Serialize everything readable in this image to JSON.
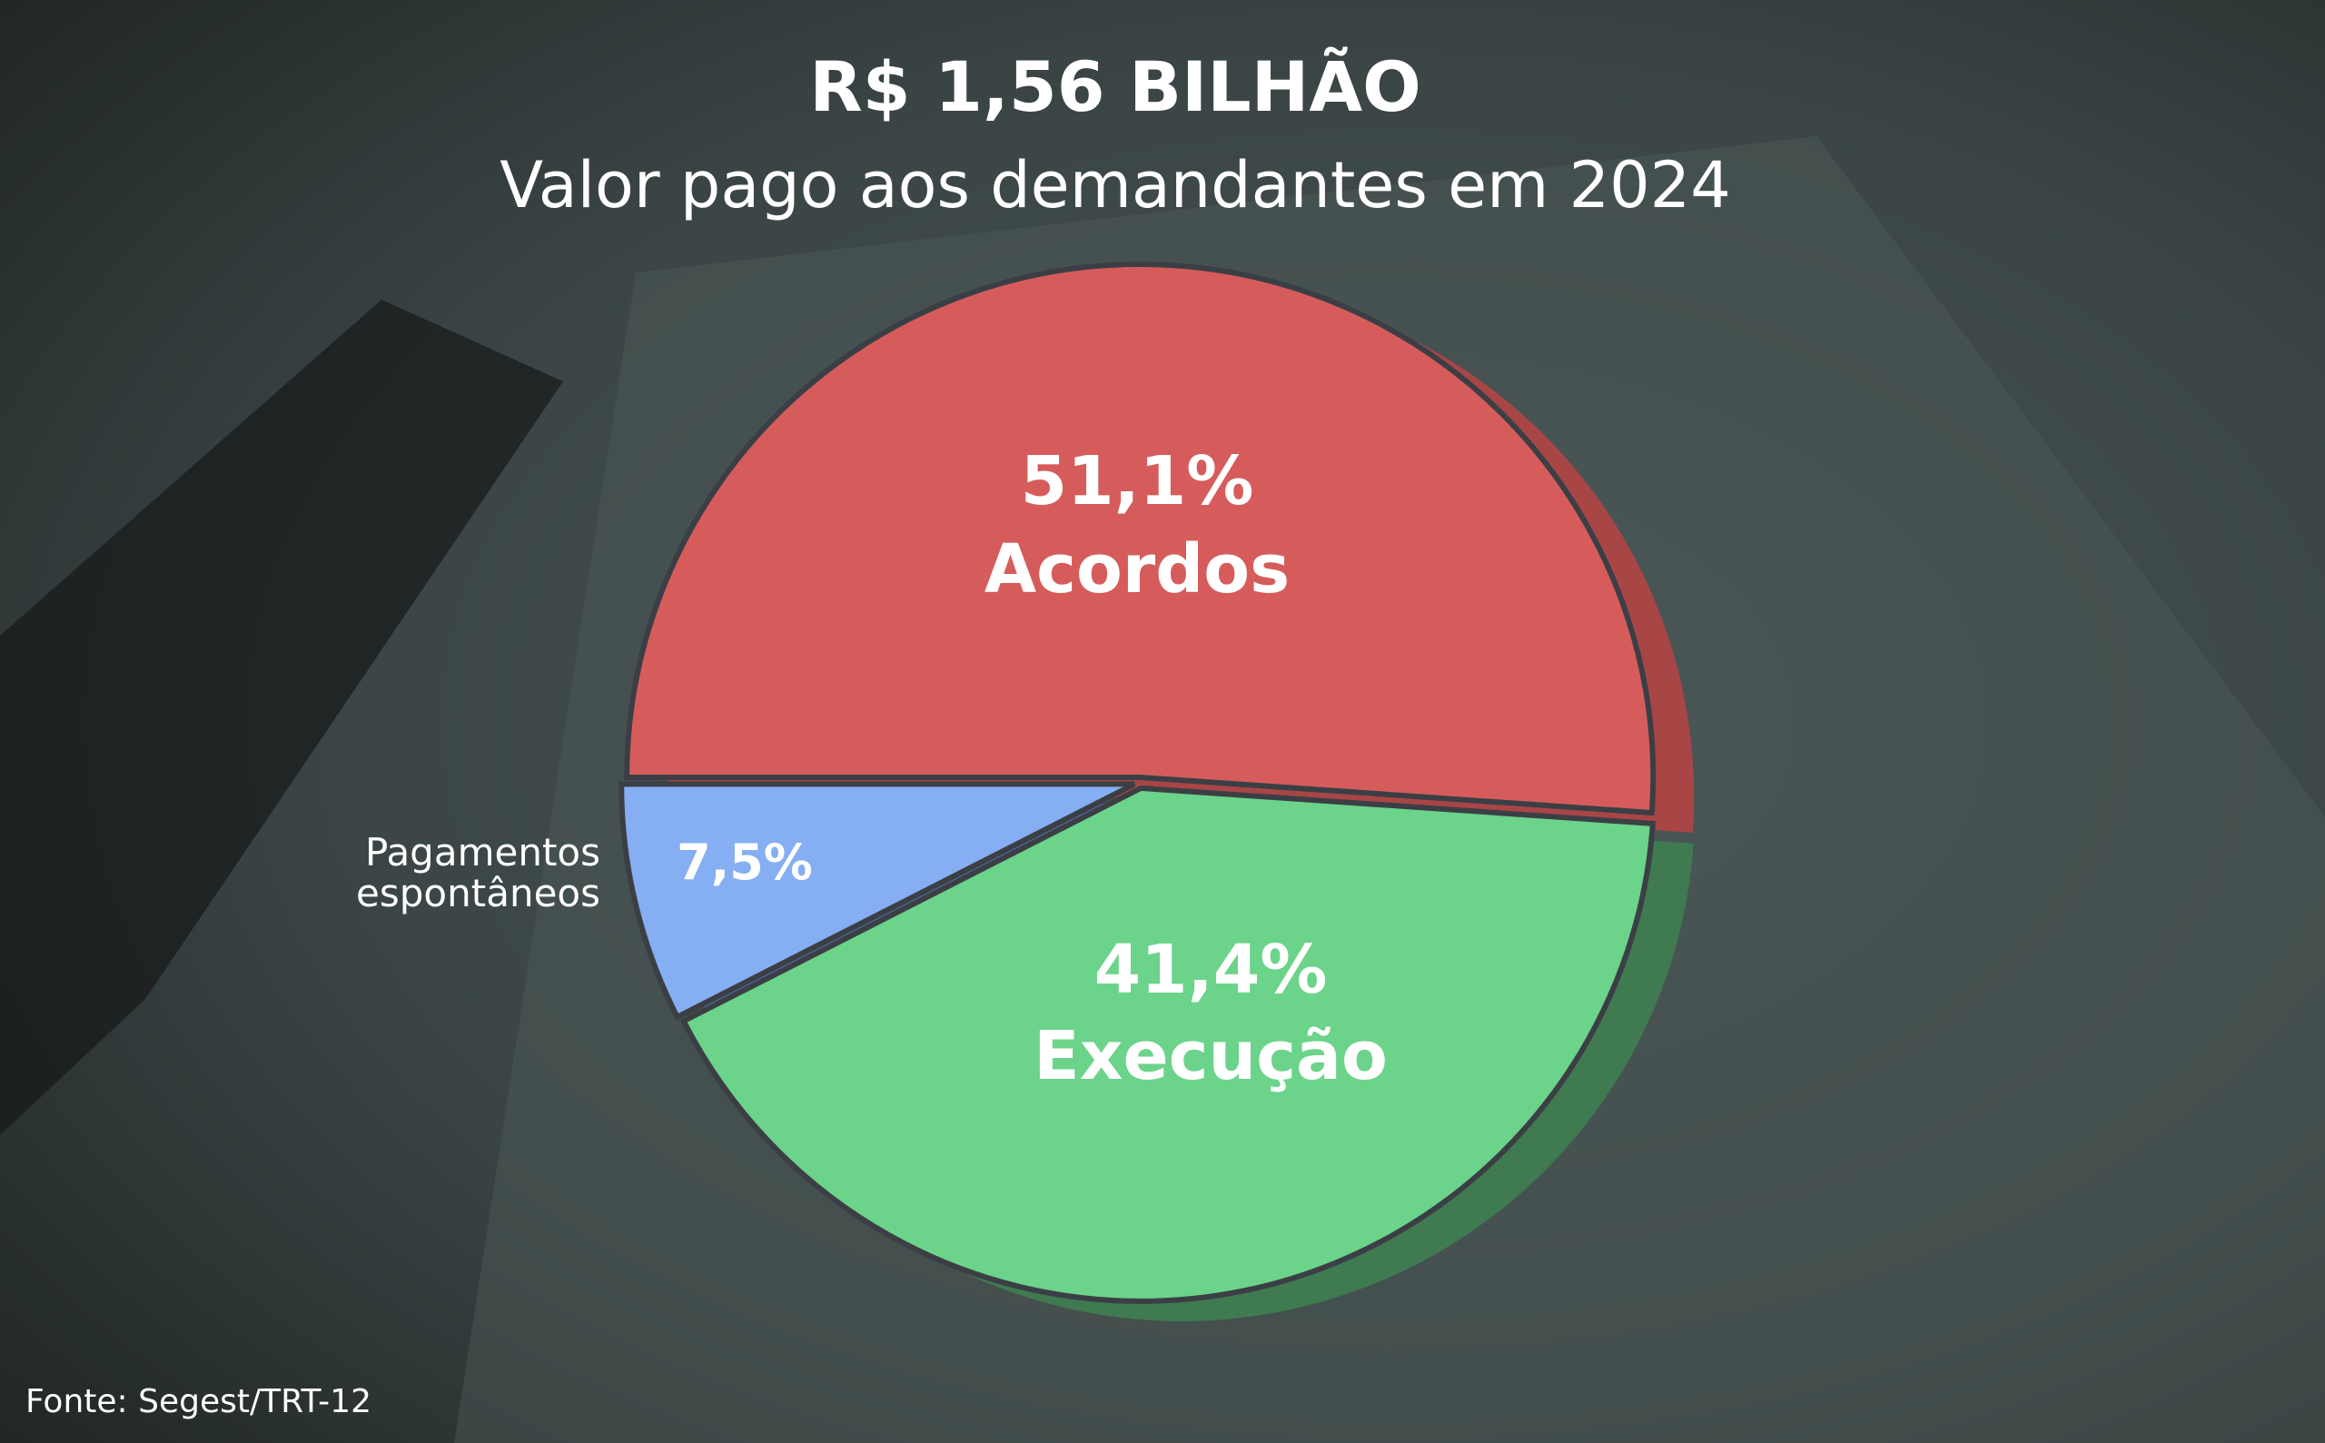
{
  "chart_data": {
    "type": "pie",
    "title": "R$ 1,56 BILHÃO",
    "subtitle": "Valor pago aos demandantes em 2024",
    "slices": [
      {
        "label": "Acordos",
        "value": 51.1,
        "value_label": "51,1%",
        "color": "#d65c5c",
        "side_color": "#a84646"
      },
      {
        "label": "Execução",
        "value": 41.4,
        "value_label": "41,4%",
        "color": "#6cd38a",
        "side_color": "#3f7a50"
      },
      {
        "label": "Pagamentos espontâneos",
        "label_lines": [
          "Pagamentos",
          "espontâneos"
        ],
        "value": 7.5,
        "value_label": "7,5%",
        "color": "#86aef2",
        "side_color": "#4d6a99"
      }
    ],
    "legend": "none",
    "source": "Fonte: Segest/TRT-12"
  },
  "colors": {
    "background": "#3a3f40",
    "background_accent": "#2f4a4a"
  }
}
